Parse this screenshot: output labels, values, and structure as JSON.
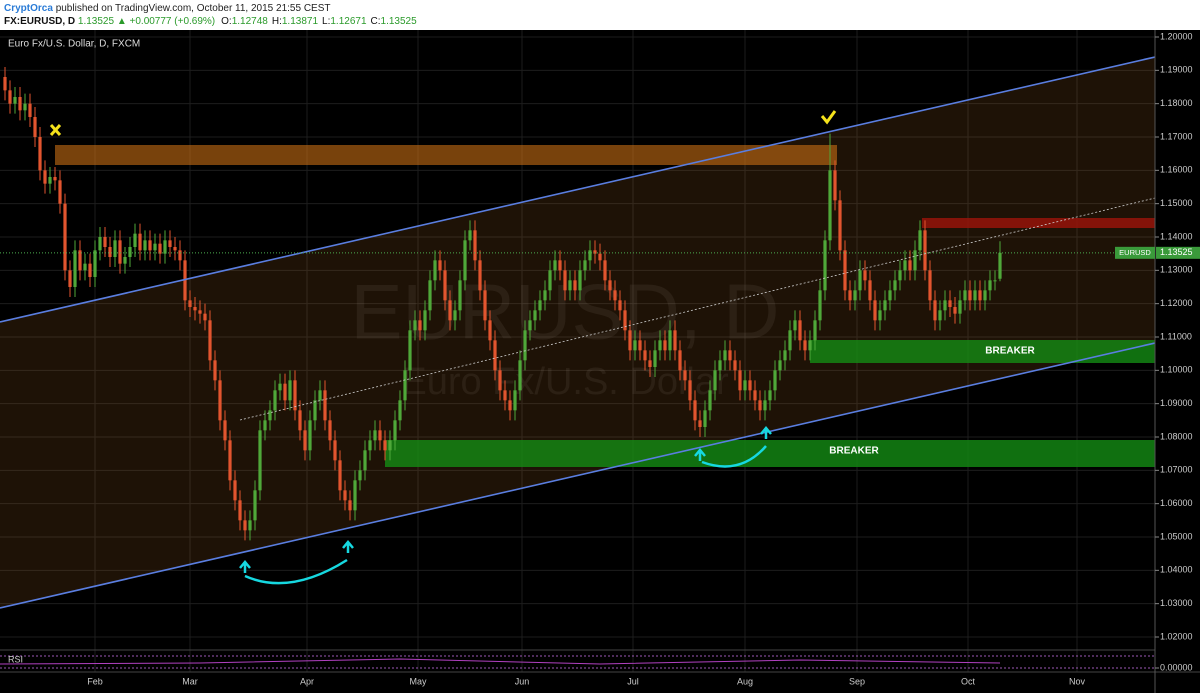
{
  "header": {
    "author": "CryptOrca",
    "published": "published on TradingView.com, October 11, 2015 21:55 CEST",
    "symbol": "FX:EURUSD, D",
    "change": "1.13525 ▲ +0.00777 (+0.69%)",
    "ohlc": [
      [
        "O:",
        "1.12748"
      ],
      [
        "H:",
        "1.13871"
      ],
      [
        "L:",
        "1.12671"
      ],
      [
        "C:",
        "1.13525"
      ]
    ]
  },
  "chart_data": {
    "type": "candlestick",
    "title": "Euro Fx/U.S. Dollar, D, FXCM",
    "watermark": [
      "EURUSD, D",
      "Euro Fx/U.S. Dollar"
    ],
    "up_color": "#4fa83a",
    "down_color": "#e2552f",
    "grid": true,
    "open": [
      1.188,
      1.184,
      1.18,
      1.182,
      1.178,
      1.18,
      1.176,
      1.17,
      1.16,
      1.156,
      1.158,
      1.157,
      1.15,
      1.13,
      1.125,
      1.136,
      1.13,
      1.132,
      1.128,
      1.136,
      1.14,
      1.137,
      1.134,
      1.139,
      1.132,
      1.134,
      1.137,
      1.141,
      1.136,
      1.139,
      1.136,
      1.138,
      1.135,
      1.139,
      1.137,
      1.136,
      1.133,
      1.121,
      1.119,
      1.118,
      1.117,
      1.115,
      1.103,
      1.097,
      1.085,
      1.079,
      1.067,
      1.061,
      1.055,
      1.052,
      1.055,
      1.064,
      1.082,
      1.085,
      1.088,
      1.094,
      1.096,
      1.091,
      1.097,
      1.088,
      1.082,
      1.076,
      1.085,
      1.091,
      1.094,
      1.085,
      1.079,
      1.073,
      1.064,
      1.061,
      1.058,
      1.067,
      1.07,
      1.076,
      1.079,
      1.082,
      1.079,
      1.076,
      1.079,
      1.085,
      1.091,
      1.1,
      1.112,
      1.115,
      1.112,
      1.118,
      1.127,
      1.133,
      1.13,
      1.121,
      1.115,
      1.118,
      1.127,
      1.139,
      1.142,
      1.133,
      1.124,
      1.115,
      1.109,
      1.1,
      1.094,
      1.091,
      1.088,
      1.094,
      1.103,
      1.112,
      1.115,
      1.118,
      1.121,
      1.124,
      1.13,
      1.133,
      1.13,
      1.124,
      1.127,
      1.124,
      1.13,
      1.133,
      1.136,
      1.135,
      1.133,
      1.127,
      1.124,
      1.121,
      1.118,
      1.112,
      1.106,
      1.109,
      1.106,
      1.103,
      1.101,
      1.106,
      1.109,
      1.106,
      1.112,
      1.106,
      1.1,
      1.097,
      1.091,
      1.085,
      1.083,
      1.088,
      1.094,
      1.1,
      1.103,
      1.106,
      1.103,
      1.1,
      1.094,
      1.097,
      1.094,
      1.091,
      1.088,
      1.091,
      1.094,
      1.1,
      1.103,
      1.106,
      1.112,
      1.115,
      1.109,
      1.106,
      1.109,
      1.115,
      1.124,
      1.139,
      1.16,
      1.151,
      1.136,
      1.124,
      1.121,
      1.124,
      1.13,
      1.127,
      1.121,
      1.115,
      1.118,
      1.121,
      1.124,
      1.127,
      1.13,
      1.133,
      1.13,
      1.136,
      1.142,
      1.13,
      1.121,
      1.115,
      1.118,
      1.121,
      1.119,
      1.117,
      1.121,
      1.124,
      1.121,
      1.124,
      1.121,
      1.124,
      1.127,
      1.12748
    ],
    "high": [
      1.191,
      1.187,
      1.185,
      1.185,
      1.183,
      1.183,
      1.179,
      1.173,
      1.163,
      1.161,
      1.161,
      1.16,
      1.153,
      1.133,
      1.139,
      1.139,
      1.135,
      1.135,
      1.139,
      1.143,
      1.143,
      1.14,
      1.142,
      1.142,
      1.137,
      1.14,
      1.144,
      1.144,
      1.142,
      1.142,
      1.141,
      1.141,
      1.142,
      1.142,
      1.14,
      1.139,
      1.136,
      1.124,
      1.122,
      1.121,
      1.12,
      1.118,
      1.106,
      1.1,
      1.088,
      1.082,
      1.07,
      1.064,
      1.058,
      1.058,
      1.067,
      1.085,
      1.088,
      1.091,
      1.097,
      1.099,
      1.099,
      1.1,
      1.1,
      1.091,
      1.085,
      1.088,
      1.094,
      1.097,
      1.097,
      1.088,
      1.082,
      1.076,
      1.067,
      1.064,
      1.07,
      1.073,
      1.079,
      1.082,
      1.085,
      1.085,
      1.082,
      1.082,
      1.088,
      1.094,
      1.103,
      1.115,
      1.118,
      1.118,
      1.121,
      1.13,
      1.136,
      1.136,
      1.133,
      1.124,
      1.121,
      1.13,
      1.142,
      1.145,
      1.145,
      1.136,
      1.127,
      1.118,
      1.112,
      1.103,
      1.097,
      1.094,
      1.097,
      1.106,
      1.115,
      1.118,
      1.121,
      1.124,
      1.127,
      1.133,
      1.136,
      1.136,
      1.133,
      1.13,
      1.13,
      1.133,
      1.136,
      1.139,
      1.139,
      1.138,
      1.136,
      1.13,
      1.127,
      1.124,
      1.121,
      1.115,
      1.112,
      1.112,
      1.109,
      1.106,
      1.109,
      1.112,
      1.112,
      1.115,
      1.115,
      1.109,
      1.103,
      1.1,
      1.094,
      1.088,
      1.091,
      1.097,
      1.103,
      1.106,
      1.109,
      1.109,
      1.106,
      1.103,
      1.1,
      1.1,
      1.097,
      1.094,
      1.094,
      1.097,
      1.103,
      1.106,
      1.109,
      1.115,
      1.118,
      1.118,
      1.112,
      1.112,
      1.118,
      1.127,
      1.142,
      1.171,
      1.163,
      1.154,
      1.139,
      1.127,
      1.127,
      1.133,
      1.133,
      1.13,
      1.124,
      1.121,
      1.124,
      1.127,
      1.13,
      1.133,
      1.136,
      1.136,
      1.139,
      1.145,
      1.145,
      1.133,
      1.124,
      1.121,
      1.124,
      1.124,
      1.122,
      1.124,
      1.127,
      1.127,
      1.127,
      1.127,
      1.127,
      1.13,
      1.13,
      1.13871
    ],
    "low": [
      1.181,
      1.177,
      1.177,
      1.175,
      1.175,
      1.173,
      1.167,
      1.157,
      1.153,
      1.153,
      1.154,
      1.147,
      1.127,
      1.122,
      1.122,
      1.127,
      1.127,
      1.125,
      1.125,
      1.133,
      1.134,
      1.131,
      1.131,
      1.129,
      1.129,
      1.131,
      1.134,
      1.133,
      1.133,
      1.133,
      1.133,
      1.132,
      1.132,
      1.134,
      1.133,
      1.13,
      1.118,
      1.116,
      1.115,
      1.114,
      1.112,
      1.1,
      1.094,
      1.082,
      1.076,
      1.064,
      1.058,
      1.052,
      1.049,
      1.049,
      1.052,
      1.061,
      1.079,
      1.082,
      1.085,
      1.091,
      1.088,
      1.088,
      1.085,
      1.079,
      1.073,
      1.073,
      1.082,
      1.088,
      1.082,
      1.076,
      1.07,
      1.061,
      1.058,
      1.055,
      1.055,
      1.064,
      1.067,
      1.073,
      1.076,
      1.076,
      1.073,
      1.073,
      1.076,
      1.082,
      1.088,
      1.097,
      1.109,
      1.109,
      1.109,
      1.115,
      1.124,
      1.127,
      1.118,
      1.112,
      1.112,
      1.115,
      1.124,
      1.136,
      1.13,
      1.121,
      1.112,
      1.106,
      1.097,
      1.091,
      1.088,
      1.085,
      1.085,
      1.091,
      1.1,
      1.109,
      1.112,
      1.115,
      1.118,
      1.121,
      1.127,
      1.127,
      1.121,
      1.121,
      1.121,
      1.121,
      1.127,
      1.13,
      1.132,
      1.13,
      1.124,
      1.121,
      1.118,
      1.115,
      1.109,
      1.103,
      1.103,
      1.103,
      1.1,
      1.098,
      1.098,
      1.103,
      1.103,
      1.103,
      1.103,
      1.097,
      1.094,
      1.088,
      1.082,
      1.08,
      1.08,
      1.085,
      1.091,
      1.097,
      1.1,
      1.1,
      1.097,
      1.091,
      1.091,
      1.091,
      1.088,
      1.085,
      1.085,
      1.088,
      1.091,
      1.097,
      1.1,
      1.103,
      1.109,
      1.106,
      1.103,
      1.103,
      1.106,
      1.112,
      1.121,
      1.136,
      1.148,
      1.133,
      1.121,
      1.118,
      1.118,
      1.121,
      1.124,
      1.118,
      1.112,
      1.112,
      1.115,
      1.118,
      1.121,
      1.124,
      1.127,
      1.127,
      1.127,
      1.133,
      1.127,
      1.118,
      1.112,
      1.112,
      1.115,
      1.116,
      1.114,
      1.114,
      1.118,
      1.118,
      1.118,
      1.118,
      1.118,
      1.121,
      1.124,
      1.12671
    ],
    "close": [
      1.184,
      1.18,
      1.182,
      1.178,
      1.18,
      1.176,
      1.17,
      1.16,
      1.156,
      1.158,
      1.157,
      1.15,
      1.13,
      1.125,
      1.136,
      1.13,
      1.132,
      1.128,
      1.136,
      1.14,
      1.137,
      1.134,
      1.139,
      1.132,
      1.134,
      1.137,
      1.141,
      1.136,
      1.139,
      1.136,
      1.138,
      1.135,
      1.139,
      1.137,
      1.136,
      1.133,
      1.121,
      1.119,
      1.118,
      1.117,
      1.115,
      1.103,
      1.097,
      1.085,
      1.079,
      1.067,
      1.061,
      1.055,
      1.052,
      1.055,
      1.064,
      1.082,
      1.085,
      1.088,
      1.094,
      1.096,
      1.091,
      1.097,
      1.088,
      1.082,
      1.076,
      1.085,
      1.091,
      1.094,
      1.085,
      1.079,
      1.073,
      1.064,
      1.061,
      1.058,
      1.067,
      1.07,
      1.076,
      1.079,
      1.082,
      1.079,
      1.076,
      1.079,
      1.085,
      1.091,
      1.1,
      1.112,
      1.115,
      1.112,
      1.118,
      1.127,
      1.133,
      1.13,
      1.121,
      1.115,
      1.118,
      1.127,
      1.139,
      1.142,
      1.133,
      1.124,
      1.115,
      1.109,
      1.1,
      1.094,
      1.091,
      1.088,
      1.094,
      1.103,
      1.112,
      1.115,
      1.118,
      1.121,
      1.124,
      1.13,
      1.133,
      1.13,
      1.124,
      1.127,
      1.124,
      1.13,
      1.133,
      1.136,
      1.135,
      1.133,
      1.127,
      1.124,
      1.121,
      1.118,
      1.112,
      1.106,
      1.109,
      1.106,
      1.103,
      1.101,
      1.106,
      1.109,
      1.106,
      1.112,
      1.106,
      1.1,
      1.097,
      1.091,
      1.085,
      1.083,
      1.088,
      1.094,
      1.1,
      1.103,
      1.106,
      1.103,
      1.1,
      1.094,
      1.097,
      1.094,
      1.091,
      1.088,
      1.091,
      1.094,
      1.1,
      1.103,
      1.106,
      1.112,
      1.115,
      1.109,
      1.106,
      1.109,
      1.115,
      1.124,
      1.139,
      1.16,
      1.151,
      1.136,
      1.124,
      1.121,
      1.124,
      1.13,
      1.127,
      1.121,
      1.115,
      1.118,
      1.121,
      1.124,
      1.127,
      1.13,
      1.133,
      1.13,
      1.136,
      1.142,
      1.13,
      1.121,
      1.115,
      1.118,
      1.121,
      1.119,
      1.117,
      1.121,
      1.124,
      1.121,
      1.124,
      1.121,
      1.124,
      1.127,
      1.127,
      1.13525
    ],
    "xlim": [
      -1,
      230
    ],
    "xticks": [
      {
        "value": 18,
        "label": "Feb"
      },
      {
        "value": 37,
        "label": "Mar"
      },
      {
        "value": 60.4,
        "label": "Apr"
      },
      {
        "value": 82.6,
        "label": "May"
      },
      {
        "value": 103.4,
        "label": "Jun"
      },
      {
        "value": 125.6,
        "label": "Jul"
      },
      {
        "value": 148,
        "label": "Aug"
      },
      {
        "value": 170.4,
        "label": "Sep"
      },
      {
        "value": 192.6,
        "label": "Oct"
      },
      {
        "value": 214.4,
        "label": "Nov"
      }
    ],
    "ylim": [
      1.0161,
      1.2021
    ],
    "yticks": [
      {
        "value": 1.02,
        "label": "1.02000"
      },
      {
        "value": 1.03,
        "label": "1.03000"
      },
      {
        "value": 1.04,
        "label": "1.04000"
      },
      {
        "value": 1.05,
        "label": "1.05000"
      },
      {
        "value": 1.06,
        "label": "1.06000"
      },
      {
        "value": 1.07,
        "label": "1.07000"
      },
      {
        "value": 1.08,
        "label": "1.08000"
      },
      {
        "value": 1.09,
        "label": "1.09000"
      },
      {
        "value": 1.1,
        "label": "1.10000"
      },
      {
        "value": 1.11,
        "label": "1.11000"
      },
      {
        "value": 1.12,
        "label": "1.12000"
      },
      {
        "value": 1.13,
        "label": "1.13000"
      },
      {
        "value": 1.14,
        "label": "1.14000"
      },
      {
        "value": 1.15,
        "label": "1.15000"
      },
      {
        "value": 1.16,
        "label": "1.16000"
      },
      {
        "value": 1.17,
        "label": "1.17000"
      },
      {
        "value": 1.18,
        "label": "1.18000"
      },
      {
        "value": 1.19,
        "label": "1.19000"
      },
      {
        "value": 1.2,
        "label": "1.20000"
      }
    ],
    "channel_fill": "rgba(150,90,30,0.2)",
    "lines": [
      {
        "x": [
          -1,
          230
        ],
        "y": [
          1.1145,
          1.194
        ],
        "color": "#5a7ee0",
        "dashed": false
      },
      {
        "x": [
          -1,
          230
        ],
        "y": [
          1.0287,
          1.1082
        ],
        "color": "#5a7ee0",
        "dashed": false
      },
      {
        "x": [
          47,
          230
        ],
        "y": [
          1.0851,
          1.1517
        ],
        "color": "#cccccc",
        "dashed": true
      }
    ],
    "zones": [
      {
        "x": [
          10,
          166.4
        ],
        "y": [
          1.1616,
          1.1676
        ],
        "color": "rgba(200,110,20,0.6)"
      },
      {
        "x": [
          76,
          230
        ],
        "y": [
          1.071,
          1.0791
        ],
        "color": "rgba(20,140,20,0.8)"
      },
      {
        "x": [
          161,
          230
        ],
        "y": [
          1.1022,
          1.1091
        ],
        "color": "rgba(20,140,20,0.8)"
      },
      {
        "x": [
          183.4,
          230
        ],
        "y": [
          1.1427,
          1.1457
        ],
        "color": "rgba(150,20,10,0.85)"
      }
    ],
    "annotations": [
      "BREAKER",
      "BREAKER"
    ],
    "last_price": {
      "tag": "EURUSD",
      "value": {
        "value": 1.13525,
        "label": "1.13525"
      }
    },
    "rsi": {
      "label": "RSI",
      "tick": {
        "value": 0,
        "label": "0.00000"
      }
    }
  }
}
